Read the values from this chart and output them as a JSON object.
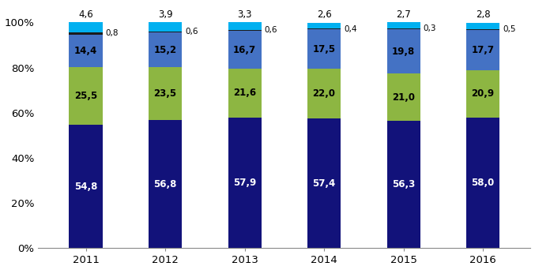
{
  "years": [
    "2011",
    "2012",
    "2013",
    "2014",
    "2015",
    "2016"
  ],
  "series": {
    "dark_navy": [
      54.8,
      56.8,
      57.9,
      57.4,
      56.3,
      58.0
    ],
    "yellow_green": [
      25.5,
      23.5,
      21.6,
      22.0,
      21.0,
      20.9
    ],
    "blue": [
      14.4,
      15.2,
      16.7,
      17.5,
      19.8,
      17.7
    ],
    "black": [
      0.8,
      0.6,
      0.6,
      0.4,
      0.3,
      0.5
    ],
    "cyan": [
      4.6,
      3.9,
      3.3,
      2.6,
      2.7,
      2.8
    ]
  },
  "colors": {
    "dark_navy": "#12127A",
    "yellow_green": "#8DB642",
    "blue": "#4472C4",
    "black": "#1C1C1C",
    "cyan": "#00B0F0"
  },
  "ylim": [
    0,
    108
  ],
  "yticks": [
    0,
    20,
    40,
    60,
    80,
    100
  ],
  "ytick_labels": [
    "0%",
    "20%",
    "40%",
    "60%",
    "80%",
    "100%"
  ],
  "bar_width": 0.42,
  "figsize": [
    6.77,
    3.42
  ],
  "dpi": 100
}
